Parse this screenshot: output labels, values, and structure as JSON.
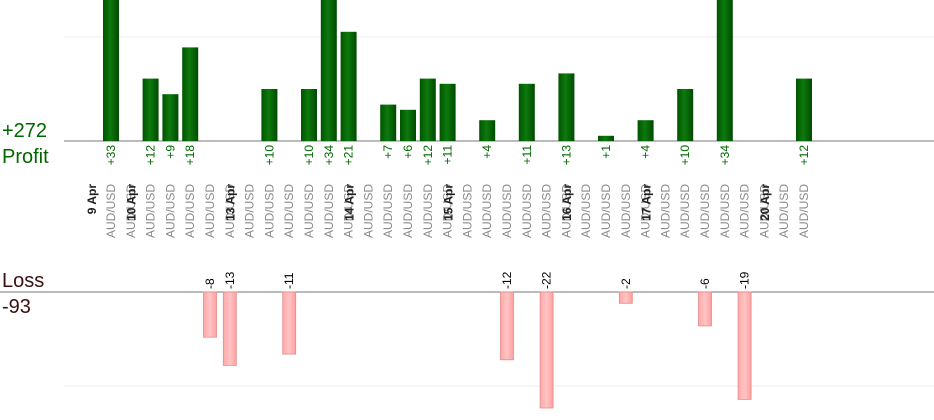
{
  "summary": {
    "profit_total": "+272",
    "profit_label": "Profit",
    "loss_label": "Loss",
    "loss_total": "-93"
  },
  "colors": {
    "profit_bar": "#006600",
    "profit_bar_highlight": "#2f8f2f",
    "profit_text": "#006600",
    "loss_bar": "#ffb3b3",
    "loss_bar_border": "#e58b8b",
    "loss_title": "#3a1010",
    "gridline": "#eeeeee",
    "axis": "#777777"
  },
  "chart_data": {
    "type": "bar",
    "columns": [
      {
        "pair": "AUD/USD",
        "date": "9 Apr",
        "profit": 33,
        "loss": null
      },
      {
        "pair": "AUD/USD",
        "date": "",
        "profit": null,
        "loss": null
      },
      {
        "pair": "AUD/USD",
        "date": "10 Apr",
        "profit": 12,
        "loss": null
      },
      {
        "pair": "AUD/USD",
        "date": "",
        "profit": 9,
        "loss": null
      },
      {
        "pair": "AUD/USD",
        "date": "",
        "profit": 18,
        "loss": null
      },
      {
        "pair": "AUD/USD",
        "date": "",
        "profit": null,
        "loss": -8
      },
      {
        "pair": "AUD/USD",
        "date": "",
        "profit": null,
        "loss": -13
      },
      {
        "pair": "AUD/USD",
        "date": "13 Apr",
        "profit": null,
        "loss": null
      },
      {
        "pair": "AUD/USD",
        "date": "",
        "profit": 10,
        "loss": null
      },
      {
        "pair": "AUD/USD",
        "date": "",
        "profit": null,
        "loss": -11
      },
      {
        "pair": "AUD/USD",
        "date": "",
        "profit": 10,
        "loss": null
      },
      {
        "pair": "AUD/USD",
        "date": "",
        "profit": 34,
        "loss": null
      },
      {
        "pair": "AUD/USD",
        "date": "",
        "profit": 21,
        "loss": null
      },
      {
        "pair": "AUD/USD",
        "date": "14 Apr",
        "profit": null,
        "loss": null
      },
      {
        "pair": "AUD/USD",
        "date": "",
        "profit": 7,
        "loss": null
      },
      {
        "pair": "AUD/USD",
        "date": "",
        "profit": 6,
        "loss": null
      },
      {
        "pair": "AUD/USD",
        "date": "",
        "profit": 12,
        "loss": null
      },
      {
        "pair": "AUD/USD",
        "date": "",
        "profit": 11,
        "loss": null
      },
      {
        "pair": "AUD/USD",
        "date": "15 Apr",
        "profit": null,
        "loss": null
      },
      {
        "pair": "AUD/USD",
        "date": "",
        "profit": 4,
        "loss": null
      },
      {
        "pair": "AUD/USD",
        "date": "",
        "profit": null,
        "loss": -12
      },
      {
        "pair": "AUD/USD",
        "date": "",
        "profit": 11,
        "loss": null
      },
      {
        "pair": "AUD/USD",
        "date": "",
        "profit": null,
        "loss": -22
      },
      {
        "pair": "AUD/USD",
        "date": "",
        "profit": 13,
        "loss": null
      },
      {
        "pair": "AUD/USD",
        "date": "16 Apr",
        "profit": null,
        "loss": null
      },
      {
        "pair": "AUD/USD",
        "date": "",
        "profit": 1,
        "loss": null
      },
      {
        "pair": "AUD/USD",
        "date": "",
        "profit": null,
        "loss": -2
      },
      {
        "pair": "AUD/USD",
        "date": "",
        "profit": 4,
        "loss": null
      },
      {
        "pair": "AUD/USD",
        "date": "17 Apr",
        "profit": null,
        "loss": null
      },
      {
        "pair": "AUD/USD",
        "date": "",
        "profit": 10,
        "loss": null
      },
      {
        "pair": "AUD/USD",
        "date": "",
        "profit": null,
        "loss": -6
      },
      {
        "pair": "AUD/USD",
        "date": "",
        "profit": 34,
        "loss": null
      },
      {
        "pair": "AUD/USD",
        "date": "",
        "profit": null,
        "loss": -19
      },
      {
        "pair": "AUD/USD",
        "date": "",
        "profit": null,
        "loss": null
      },
      {
        "pair": "AUD/USD",
        "date": "20 Apr",
        "profit": null,
        "loss": null
      },
      {
        "pair": "AUD/USD",
        "date": "",
        "profit": 12,
        "loss": null
      }
    ],
    "profit_scale_max": 20,
    "loss_scale_min": -20,
    "grid": true
  }
}
